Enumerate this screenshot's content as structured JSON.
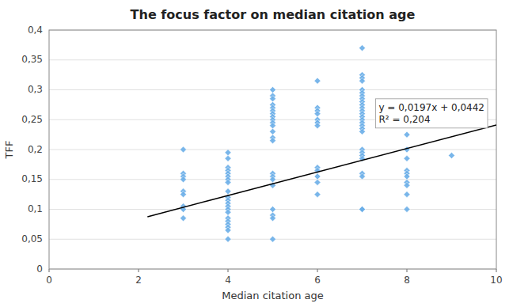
{
  "chart_data": {
    "type": "scatter",
    "title": "The focus factor on median citation age",
    "x_label": "Median citation age",
    "y_label": "TFF",
    "xlim": [
      0,
      10
    ],
    "ylim": [
      0,
      0.4
    ],
    "xticks": [
      0,
      2,
      4,
      6,
      8,
      10
    ],
    "yticks": [
      0,
      {
        "value": 0.05,
        "label": "0,05"
      },
      {
        "value": 0.1,
        "label": "0,1"
      },
      {
        "value": 0.15,
        "label": "0,15"
      },
      {
        "value": 0.2,
        "label": "0,2"
      },
      {
        "value": 0.25,
        "label": "0,25"
      },
      {
        "value": 0.3,
        "label": "0,3"
      },
      {
        "value": 0.35,
        "label": "0,35"
      },
      {
        "value": 0.4,
        "label": "0,4"
      }
    ],
    "grid": true,
    "series": [
      {
        "type": "scatter",
        "color": "#6aaee8",
        "marker": "diamond",
        "x": [
          3,
          3,
          3,
          3,
          3,
          3,
          3,
          3,
          3,
          4,
          4,
          4,
          4,
          4,
          4,
          4,
          4,
          4,
          4,
          4,
          4,
          4,
          4,
          4,
          4,
          4,
          4,
          4,
          4,
          4,
          5,
          5,
          5,
          5,
          5,
          5,
          5,
          5,
          5,
          5,
          5,
          5,
          5,
          5,
          5,
          5,
          5,
          5,
          5,
          5,
          5,
          5,
          6,
          6,
          6,
          6,
          6,
          6,
          6,
          6,
          6,
          6,
          6,
          6,
          7,
          7,
          7,
          7,
          7,
          7,
          7,
          7,
          7,
          7,
          7,
          7,
          7,
          7,
          7,
          7,
          7,
          7,
          7,
          7,
          7,
          7,
          7,
          7,
          7,
          7,
          7,
          8,
          8,
          8,
          8,
          8,
          8,
          8,
          8,
          8,
          8,
          9
        ],
        "values": [
          0.2,
          0.16,
          0.155,
          0.15,
          0.13,
          0.125,
          0.105,
          0.1,
          0.085,
          0.195,
          0.185,
          0.17,
          0.165,
          0.16,
          0.155,
          0.15,
          0.145,
          0.13,
          0.12,
          0.115,
          0.11,
          0.105,
          0.1,
          0.095,
          0.085,
          0.08,
          0.075,
          0.07,
          0.065,
          0.05,
          0.3,
          0.29,
          0.285,
          0.275,
          0.27,
          0.265,
          0.26,
          0.255,
          0.25,
          0.245,
          0.24,
          0.23,
          0.22,
          0.215,
          0.16,
          0.155,
          0.15,
          0.14,
          0.1,
          0.09,
          0.085,
          0.05,
          0.315,
          0.27,
          0.265,
          0.26,
          0.25,
          0.245,
          0.24,
          0.17,
          0.165,
          0.155,
          0.145,
          0.125,
          0.37,
          0.325,
          0.32,
          0.315,
          0.3,
          0.295,
          0.29,
          0.285,
          0.28,
          0.275,
          0.27,
          0.265,
          0.26,
          0.255,
          0.25,
          0.245,
          0.24,
          0.235,
          0.23,
          0.2,
          0.195,
          0.19,
          0.185,
          0.16,
          0.155,
          0.1,
          0.1,
          0.225,
          0.2,
          0.185,
          0.165,
          0.16,
          0.155,
          0.145,
          0.14,
          0.125,
          0.1,
          0.19
        ]
      },
      {
        "type": "line",
        "color": "black",
        "line_style": "solid",
        "x": [
          2.2,
          10.0
        ],
        "values": [
          0.08754,
          0.2412
        ]
      }
    ],
    "annotations": [
      {
        "lines": [
          "y = 0,0197x + 0,0442",
          "R² = 0,204"
        ],
        "x": 7.3,
        "y": 0.285
      }
    ]
  }
}
